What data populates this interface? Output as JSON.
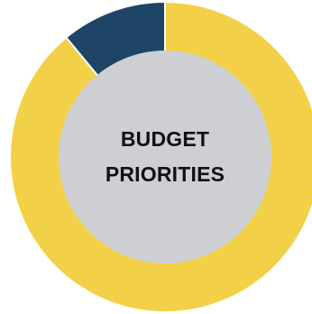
{
  "chart_data": {
    "type": "pie",
    "variant": "donut",
    "center_label_lines": [
      "BUDGET",
      "PRIORITIES"
    ],
    "series": [
      {
        "values": [
          89,
          11
        ],
        "colors": [
          "#F2D148",
          "#1E4466"
        ]
      }
    ],
    "start_angle_deg": 0,
    "direction": "clockwise",
    "slice_border_color": "#ffffff",
    "center_fill": "#CDCFD3",
    "legend": "none"
  }
}
